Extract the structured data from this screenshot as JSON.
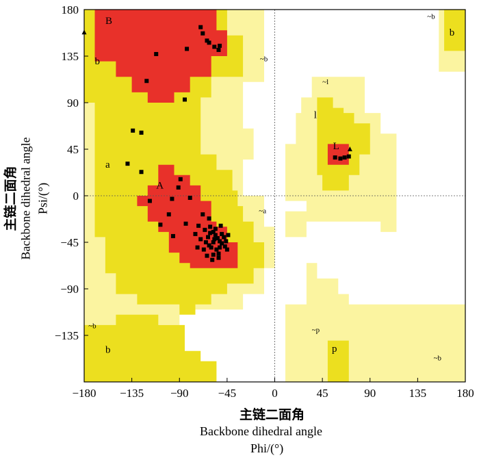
{
  "chart_data": {
    "type": "scatter",
    "title": "",
    "x_axis": {
      "label_cn": "主链二面角",
      "label_en": "Backbone dihedral angle",
      "label_var": "Phi/(°)",
      "range": [
        -180,
        180
      ],
      "ticks": [
        -180,
        -135,
        -90,
        -45,
        0,
        45,
        90,
        135,
        180
      ]
    },
    "y_axis": {
      "label_cn": "主链二面角",
      "label_en": "Backbone dihedral angle",
      "label_var": "Psi/(°)",
      "range": [
        -180,
        180
      ],
      "ticks": [
        -135,
        -90,
        -45,
        0,
        45,
        90,
        135,
        180
      ]
    },
    "grid": false,
    "reference_lines": [
      {
        "axis": "x",
        "value": 0
      },
      {
        "axis": "y",
        "value": 0
      }
    ],
    "region_colors": {
      "core": "#e8312a",
      "allowed": "#ecdf1f",
      "generous": "#fbf4a0",
      "disallowed": "#ffffff"
    },
    "region_labels": [
      {
        "text": "B",
        "phi": -160,
        "psi": 166,
        "kind": "core"
      },
      {
        "text": "b",
        "phi": -170,
        "psi": 127,
        "kind": "allowed"
      },
      {
        "text": "~b",
        "phi": -14,
        "psi": 130,
        "kind": "generous"
      },
      {
        "text": "~l",
        "phi": 45,
        "psi": 108,
        "kind": "generous"
      },
      {
        "text": "l",
        "phi": 37,
        "psi": 75,
        "kind": "allowed"
      },
      {
        "text": "L",
        "phi": 55,
        "psi": 45,
        "kind": "core"
      },
      {
        "text": "a",
        "phi": -160,
        "psi": 27,
        "kind": "allowed"
      },
      {
        "text": "A",
        "phi": -112,
        "psi": 7,
        "kind": "core"
      },
      {
        "text": "~a",
        "phi": -15,
        "psi": -17,
        "kind": "generous"
      },
      {
        "text": "~b",
        "phi": -176,
        "psi": -128,
        "kind": "generous"
      },
      {
        "text": "b",
        "phi": -160,
        "psi": -152,
        "kind": "allowed"
      },
      {
        "text": "~p",
        "phi": 35,
        "psi": -132,
        "kind": "generous"
      },
      {
        "text": "p",
        "phi": 54,
        "psi": -151,
        "kind": "allowed"
      },
      {
        "text": "~b",
        "phi": 144,
        "psi": 171,
        "kind": "generous"
      },
      {
        "text": "b",
        "phi": 165,
        "psi": 155,
        "kind": "allowed"
      },
      {
        "text": "~b",
        "phi": 150,
        "psi": -159,
        "kind": "generous"
      }
    ],
    "series": [
      {
        "marker": "square",
        "points": [
          [
            -70,
            163
          ],
          [
            -68,
            157
          ],
          [
            -64,
            150
          ],
          [
            -57,
            144
          ],
          [
            -52,
            145
          ],
          [
            -53,
            141
          ],
          [
            -62,
            148
          ],
          [
            -112,
            137
          ],
          [
            -83,
            142
          ],
          [
            -121,
            111
          ],
          [
            -85,
            93
          ],
          [
            -134,
            63
          ],
          [
            -126,
            61
          ],
          [
            -139,
            31
          ],
          [
            -126,
            23
          ],
          [
            -89,
            16
          ],
          [
            -91,
            8
          ],
          [
            -80,
            -2
          ],
          [
            -97,
            -3
          ],
          [
            -118,
            -5
          ],
          [
            -100,
            -18
          ],
          [
            -108,
            -28
          ],
          [
            -84,
            -27
          ],
          [
            -68,
            -18
          ],
          [
            -62,
            -22
          ],
          [
            -72,
            -29
          ],
          [
            -96,
            -39
          ],
          [
            -66,
            -33
          ],
          [
            -61,
            -30
          ],
          [
            -58,
            -35
          ],
          [
            -56,
            -38
          ],
          [
            -54,
            -41
          ],
          [
            -52,
            -44
          ],
          [
            -50,
            -46
          ],
          [
            -48,
            -40
          ],
          [
            -46,
            -44
          ],
          [
            -44,
            -38
          ],
          [
            -58,
            -45
          ],
          [
            -60,
            -50
          ],
          [
            -62,
            -48
          ],
          [
            -55,
            -52
          ],
          [
            -52,
            -50
          ],
          [
            -57,
            -42
          ],
          [
            -63,
            -40
          ],
          [
            -65,
            -45
          ],
          [
            -50,
            -37
          ],
          [
            -47,
            -49
          ],
          [
            -53,
            -56
          ],
          [
            -58,
            -57
          ],
          [
            -61,
            -36
          ],
          [
            -56,
            -32
          ],
          [
            -51,
            -29
          ],
          [
            -45,
            -52
          ],
          [
            -67,
            -52
          ],
          [
            -70,
            -42
          ],
          [
            -73,
            -50
          ],
          [
            -75,
            -37
          ],
          [
            -64,
            -58
          ],
          [
            -59,
            -62
          ],
          [
            -53,
            -60
          ],
          [
            57,
            37
          ],
          [
            62,
            36
          ],
          [
            66,
            37
          ],
          [
            70,
            38
          ]
        ]
      },
      {
        "marker": "triangle",
        "points": [
          [
            -180,
            158
          ],
          [
            71,
            45
          ]
        ]
      }
    ]
  }
}
